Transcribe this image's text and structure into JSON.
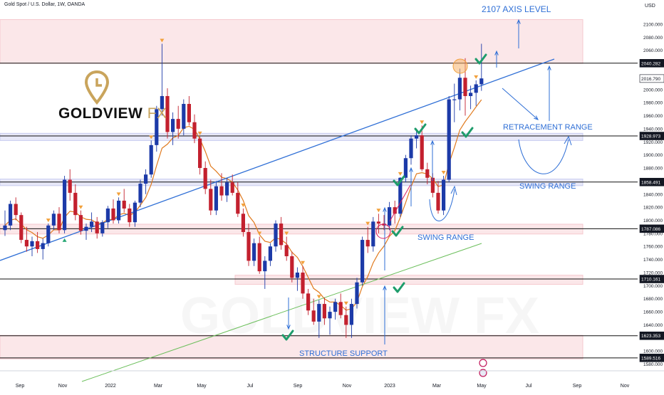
{
  "header": {
    "symbol": "Gold Spot / U.S. Dollar, 1W, OANDA"
  },
  "logo": {
    "brand": "GOLDVIEW",
    "suffix": "FX",
    "watermark": "GOLDVIEW FX"
  },
  "annotations": {
    "axis_level": "2107 AXIS LEVEL",
    "retracement": "RETRACEMENT RANGE",
    "swing_upper": "SWING RANGE",
    "swing_lower": "SWING RANGE",
    "support": "STRUCTURE SUPPORT"
  },
  "colors": {
    "up": "#1c3aa8",
    "down": "#c3202e",
    "zone_pink": "#f6c9cf",
    "zone_blue": "#c9cdf0",
    "ema_short": "#e07a1e",
    "ema_long": "#6cbf5c",
    "trend": "#2f6fd6",
    "marker": "#f2a03a",
    "check": "#1e9c6b"
  },
  "chart_data": {
    "type": "candlestick",
    "currency": "USD",
    "y_ticks": [
      1580,
      1600,
      1620,
      1640,
      1660,
      1680,
      1700,
      1720,
      1740,
      1760,
      1780,
      1800,
      1820,
      1840,
      1860,
      1880,
      1900,
      1920,
      1940,
      1960,
      1980,
      2000,
      2020,
      2040,
      2060,
      2080,
      2100
    ],
    "y_tick_labels": [
      "1580.000",
      "1600.000",
      "1620.000",
      "1640.000",
      "1660.000",
      "1680.000",
      "1700.000",
      "1720.000",
      "1740.000",
      "1760.000",
      "1780.000",
      "1800.000",
      "1820.000",
      "1840.000",
      "1860.000",
      "1880.000",
      "1900.000",
      "1920.000",
      "1940.000",
      "1960.000",
      "1980.000",
      "2000.000",
      "2020.000",
      "2040.000",
      "2060.000",
      "2080.000",
      "2100.000"
    ],
    "ylim": [
      1573,
      2113
    ],
    "x_labels": [
      "Sep",
      "Nov",
      "2022",
      "Mar",
      "May",
      "Jul",
      "Sep",
      "Nov",
      "2023",
      "Mar",
      "May",
      "Jul",
      "Sep",
      "Nov"
    ],
    "levels": [
      {
        "price": 2040.282,
        "label": "2040.282"
      },
      {
        "price": 2016.79,
        "label": "2016.790"
      },
      {
        "price": 1928.973,
        "label": "1928.973"
      },
      {
        "price": 1858.491,
        "label": "1858.491"
      },
      {
        "price": 1787.086,
        "label": "1787.086"
      },
      {
        "price": 1710.161,
        "label": "1710.161"
      },
      {
        "price": 1623.353,
        "label": "1623.353"
      },
      {
        "price": 1589.516,
        "label": "1589.516"
      }
    ],
    "zones": [
      {
        "from": 2040,
        "to": 2107,
        "color": "pink"
      },
      {
        "from": 1922,
        "to": 1933,
        "color": "blue"
      },
      {
        "from": 1853,
        "to": 1863,
        "color": "blue"
      },
      {
        "from": 1779,
        "to": 1794,
        "color": "pink"
      },
      {
        "from": 1702,
        "to": 1716,
        "color": "pink"
      },
      {
        "from": 1588,
        "to": 1624,
        "color": "pink"
      }
    ],
    "candles": [
      {
        "o": 1785,
        "h": 1815,
        "l": 1776,
        "c": 1792
      },
      {
        "o": 1792,
        "h": 1830,
        "l": 1785,
        "c": 1825
      },
      {
        "o": 1825,
        "h": 1835,
        "l": 1800,
        "c": 1808
      },
      {
        "o": 1808,
        "h": 1812,
        "l": 1765,
        "c": 1770
      },
      {
        "o": 1770,
        "h": 1790,
        "l": 1752,
        "c": 1760
      },
      {
        "o": 1760,
        "h": 1775,
        "l": 1745,
        "c": 1768
      },
      {
        "o": 1768,
        "h": 1782,
        "l": 1750,
        "c": 1756
      },
      {
        "o": 1756,
        "h": 1772,
        "l": 1740,
        "c": 1765
      },
      {
        "o": 1765,
        "h": 1795,
        "l": 1760,
        "c": 1792
      },
      {
        "o": 1792,
        "h": 1815,
        "l": 1785,
        "c": 1810
      },
      {
        "o": 1810,
        "h": 1820,
        "l": 1780,
        "c": 1785
      },
      {
        "o": 1785,
        "h": 1868,
        "l": 1780,
        "c": 1862
      },
      {
        "o": 1862,
        "h": 1878,
        "l": 1830,
        "c": 1842
      },
      {
        "o": 1842,
        "h": 1855,
        "l": 1800,
        "c": 1808
      },
      {
        "o": 1808,
        "h": 1815,
        "l": 1778,
        "c": 1784
      },
      {
        "o": 1784,
        "h": 1795,
        "l": 1770,
        "c": 1790
      },
      {
        "o": 1790,
        "h": 1812,
        "l": 1782,
        "c": 1798
      },
      {
        "o": 1798,
        "h": 1805,
        "l": 1772,
        "c": 1780
      },
      {
        "o": 1780,
        "h": 1800,
        "l": 1775,
        "c": 1797
      },
      {
        "o": 1797,
        "h": 1822,
        "l": 1788,
        "c": 1818
      },
      {
        "o": 1818,
        "h": 1832,
        "l": 1795,
        "c": 1800
      },
      {
        "o": 1800,
        "h": 1835,
        "l": 1795,
        "c": 1830
      },
      {
        "o": 1830,
        "h": 1848,
        "l": 1812,
        "c": 1818
      },
      {
        "o": 1818,
        "h": 1825,
        "l": 1790,
        "c": 1797
      },
      {
        "o": 1797,
        "h": 1830,
        "l": 1790,
        "c": 1827
      },
      {
        "o": 1827,
        "h": 1862,
        "l": 1820,
        "c": 1856
      },
      {
        "o": 1856,
        "h": 1878,
        "l": 1840,
        "c": 1870
      },
      {
        "o": 1870,
        "h": 1922,
        "l": 1865,
        "c": 1915
      },
      {
        "o": 1915,
        "h": 1975,
        "l": 1905,
        "c": 1970
      },
      {
        "o": 1970,
        "h": 2070,
        "l": 1960,
        "c": 1990
      },
      {
        "o": 1990,
        "h": 2002,
        "l": 1925,
        "c": 1935
      },
      {
        "o": 1935,
        "h": 1965,
        "l": 1915,
        "c": 1955
      },
      {
        "o": 1955,
        "h": 1975,
        "l": 1925,
        "c": 1940
      },
      {
        "o": 1940,
        "h": 1985,
        "l": 1930,
        "c": 1978
      },
      {
        "o": 1978,
        "h": 1990,
        "l": 1945,
        "c": 1950
      },
      {
        "o": 1950,
        "h": 1962,
        "l": 1918,
        "c": 1925
      },
      {
        "o": 1925,
        "h": 1928,
        "l": 1870,
        "c": 1880
      },
      {
        "o": 1880,
        "h": 1890,
        "l": 1840,
        "c": 1848
      },
      {
        "o": 1848,
        "h": 1862,
        "l": 1808,
        "c": 1815
      },
      {
        "o": 1815,
        "h": 1860,
        "l": 1808,
        "c": 1852
      },
      {
        "o": 1852,
        "h": 1872,
        "l": 1830,
        "c": 1838
      },
      {
        "o": 1838,
        "h": 1865,
        "l": 1828,
        "c": 1858
      },
      {
        "o": 1858,
        "h": 1870,
        "l": 1838,
        "c": 1842
      },
      {
        "o": 1842,
        "h": 1858,
        "l": 1805,
        "c": 1810
      },
      {
        "o": 1810,
        "h": 1818,
        "l": 1775,
        "c": 1782
      },
      {
        "o": 1782,
        "h": 1795,
        "l": 1730,
        "c": 1738
      },
      {
        "o": 1738,
        "h": 1772,
        "l": 1730,
        "c": 1765
      },
      {
        "o": 1765,
        "h": 1775,
        "l": 1718,
        "c": 1722
      },
      {
        "o": 1722,
        "h": 1745,
        "l": 1695,
        "c": 1738
      },
      {
        "o": 1738,
        "h": 1765,
        "l": 1730,
        "c": 1760
      },
      {
        "o": 1760,
        "h": 1800,
        "l": 1752,
        "c": 1795
      },
      {
        "o": 1795,
        "h": 1805,
        "l": 1755,
        "c": 1762
      },
      {
        "o": 1762,
        "h": 1775,
        "l": 1738,
        "c": 1745
      },
      {
        "o": 1745,
        "h": 1752,
        "l": 1705,
        "c": 1712
      },
      {
        "o": 1712,
        "h": 1728,
        "l": 1692,
        "c": 1720
      },
      {
        "o": 1720,
        "h": 1730,
        "l": 1680,
        "c": 1688
      },
      {
        "o": 1688,
        "h": 1695,
        "l": 1655,
        "c": 1662
      },
      {
        "o": 1662,
        "h": 1680,
        "l": 1640,
        "c": 1645
      },
      {
        "o": 1645,
        "h": 1678,
        "l": 1620,
        "c": 1672
      },
      {
        "o": 1672,
        "h": 1682,
        "l": 1640,
        "c": 1650
      },
      {
        "o": 1650,
        "h": 1668,
        "l": 1625,
        "c": 1660
      },
      {
        "o": 1660,
        "h": 1680,
        "l": 1648,
        "c": 1675
      },
      {
        "o": 1675,
        "h": 1688,
        "l": 1650,
        "c": 1655
      },
      {
        "o": 1655,
        "h": 1668,
        "l": 1620,
        "c": 1640
      },
      {
        "o": 1640,
        "h": 1680,
        "l": 1620,
        "c": 1672
      },
      {
        "o": 1672,
        "h": 1712,
        "l": 1665,
        "c": 1705
      },
      {
        "o": 1705,
        "h": 1775,
        "l": 1700,
        "c": 1770
      },
      {
        "o": 1770,
        "h": 1790,
        "l": 1750,
        "c": 1760
      },
      {
        "o": 1760,
        "h": 1805,
        "l": 1752,
        "c": 1798
      },
      {
        "o": 1798,
        "h": 1810,
        "l": 1780,
        "c": 1795
      },
      {
        "o": 1795,
        "h": 1808,
        "l": 1785,
        "c": 1792
      },
      {
        "o": 1792,
        "h": 1828,
        "l": 1785,
        "c": 1820
      },
      {
        "o": 1820,
        "h": 1830,
        "l": 1795,
        "c": 1810
      },
      {
        "o": 1810,
        "h": 1866,
        "l": 1805,
        "c": 1865
      },
      {
        "o": 1865,
        "h": 1900,
        "l": 1858,
        "c": 1895
      },
      {
        "o": 1895,
        "h": 1930,
        "l": 1885,
        "c": 1925
      },
      {
        "o": 1925,
        "h": 1940,
        "l": 1910,
        "c": 1930
      },
      {
        "o": 1930,
        "h": 1945,
        "l": 1875,
        "c": 1878
      },
      {
        "o": 1878,
        "h": 1888,
        "l": 1855,
        "c": 1865
      },
      {
        "o": 1865,
        "h": 1872,
        "l": 1835,
        "c": 1842
      },
      {
        "o": 1842,
        "h": 1860,
        "l": 1810,
        "c": 1815
      },
      {
        "o": 1815,
        "h": 1868,
        "l": 1808,
        "c": 1862
      },
      {
        "o": 1862,
        "h": 1990,
        "l": 1858,
        "c": 1985
      },
      {
        "o": 1985,
        "h": 2009,
        "l": 1950,
        "c": 1985
      },
      {
        "o": 1985,
        "h": 2032,
        "l": 1968,
        "c": 2018
      },
      {
        "o": 2018,
        "h": 2048,
        "l": 1960,
        "c": 1990
      },
      {
        "o": 1990,
        "h": 2006,
        "l": 1970,
        "c": 1995
      },
      {
        "o": 1995,
        "h": 2014,
        "l": 1975,
        "c": 2008
      },
      {
        "o": 2008,
        "h": 2070,
        "l": 1998,
        "c": 2017
      }
    ],
    "markers_down_at": [
      8,
      14,
      21,
      27,
      29,
      36,
      44,
      47,
      52,
      55,
      58,
      63,
      67,
      69,
      73,
      77,
      81,
      87
    ],
    "markers_up_at": [
      11
    ]
  }
}
